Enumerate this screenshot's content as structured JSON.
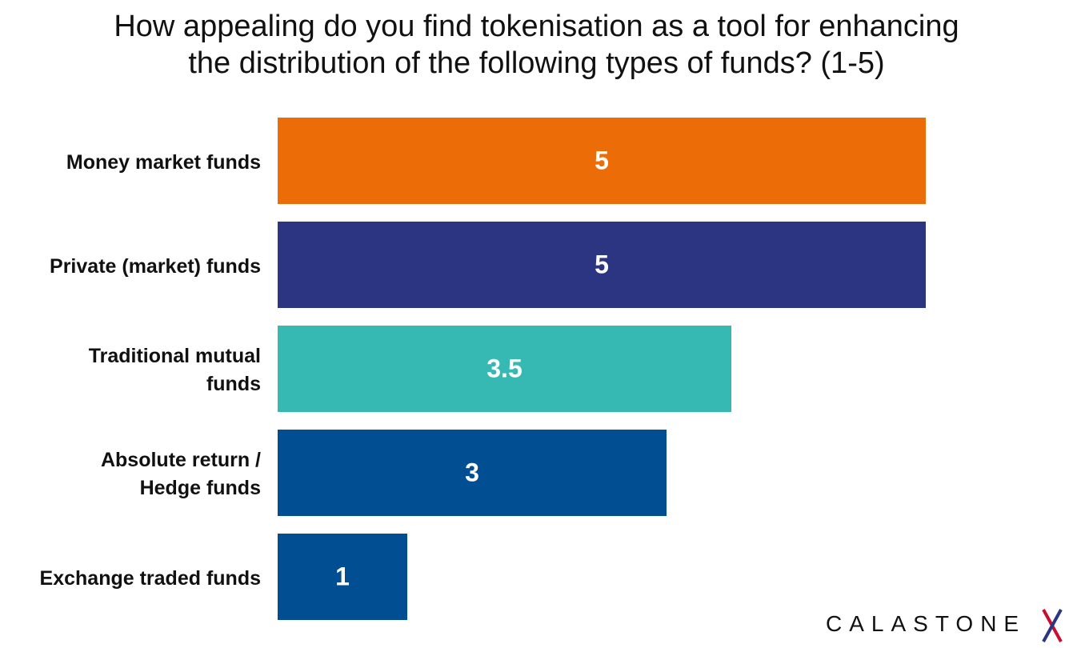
{
  "chart_data": {
    "type": "bar",
    "orientation": "horizontal",
    "title": "How appealing do you find tokenisation as a tool for enhancing\nthe distribution of the following types of funds? (1-5)",
    "categories": [
      "Money market funds",
      "Private (market) funds",
      "Traditional mutual\nfunds",
      "Absolute return /\nHedge funds",
      "Exchange traded funds"
    ],
    "values": [
      5,
      5,
      3.5,
      3,
      1
    ],
    "colors": [
      "#ec6c08",
      "#2b3582",
      "#36b9b3",
      "#024e92",
      "#024e92"
    ],
    "xlim": [
      0,
      5
    ],
    "logo": "CALASTONE"
  }
}
